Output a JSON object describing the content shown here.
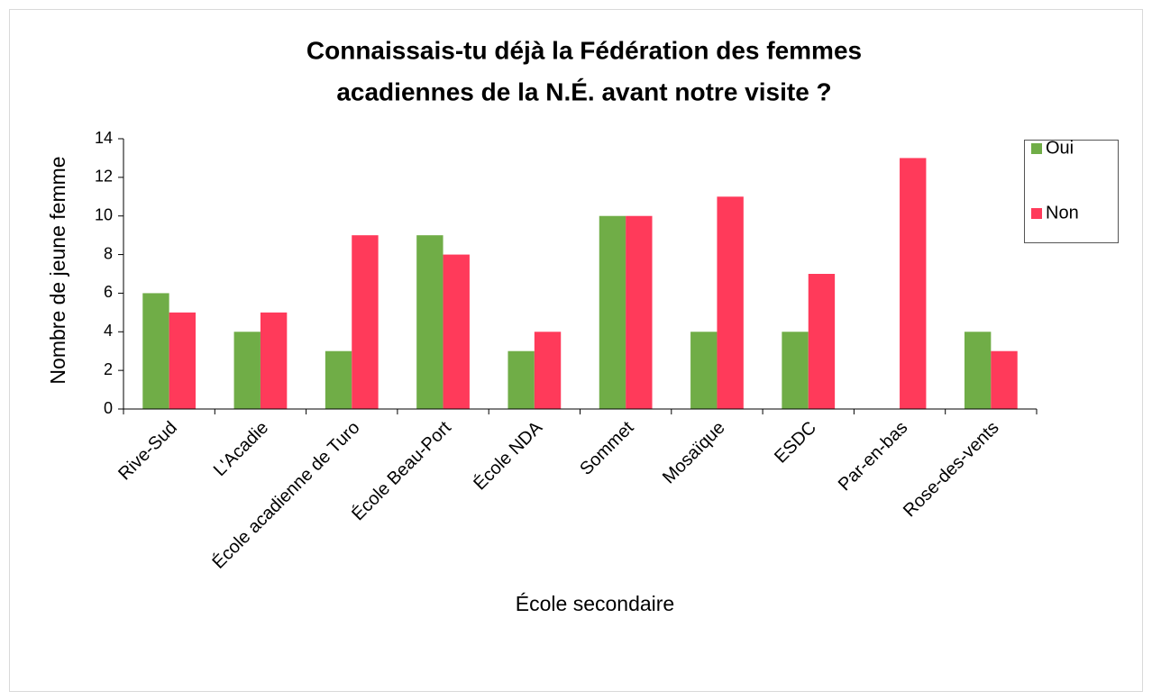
{
  "chart_data": {
    "type": "bar",
    "title": [
      "Connaissais-tu déjà la Fédération des femmes",
      "acadiennes de la N.É. avant notre visite ?"
    ],
    "x_label": "École secondaire",
    "y_label": "Nombre de jeune femme",
    "categories": [
      "Rive-Sud",
      "L'Acadie",
      "École acadienne de Turo",
      "École Beau-Port",
      "École NDA",
      "Sommet",
      "Mosaïque",
      "ESDC",
      "Par-en-bas",
      "Rose-des-vents"
    ],
    "series": [
      {
        "name": "Oui",
        "color": "#70ad47",
        "values": [
          6,
          4,
          3,
          9,
          3,
          10,
          4,
          4,
          0,
          4
        ]
      },
      {
        "name": "Non",
        "color": "#ff3a5a",
        "values": [
          5,
          5,
          9,
          8,
          4,
          10,
          11,
          7,
          13,
          3
        ]
      }
    ],
    "ylim": [
      0,
      14
    ],
    "yticks": [
      0,
      2,
      4,
      6,
      8,
      10,
      12,
      14
    ],
    "grid": false,
    "legend": "right"
  }
}
